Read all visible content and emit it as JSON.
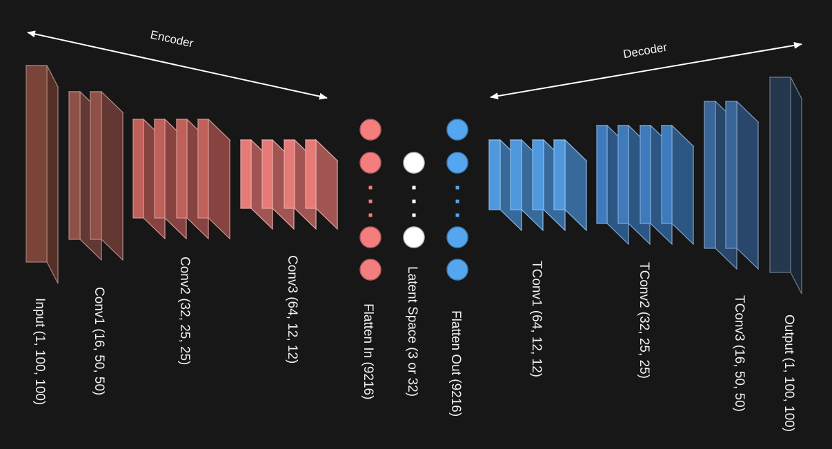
{
  "colors": {
    "background": "#171717",
    "encoder_input": "#7a4438",
    "encoder_conv1": "#8f5047",
    "encoder_conv2": "#c0605a",
    "encoder_conv3": "#e57a77",
    "flatten_in": "#f47d7d",
    "latent": "#ffffff",
    "flatten_out": "#55a6f0",
    "decoder_tconv1": "#4f98de",
    "decoder_tconv2": "#3f7bbc",
    "decoder_tconv3": "#3a6599",
    "decoder_output": "#24384f"
  },
  "arrows": {
    "encoder": "Encoder",
    "decoder": "Decoder"
  },
  "layers": [
    {
      "id": "input",
      "label": "Input (1, 100, 100)"
    },
    {
      "id": "conv1",
      "label": "Conv1 (16, 50, 50)"
    },
    {
      "id": "conv2",
      "label": "Conv2 (32, 25, 25)"
    },
    {
      "id": "conv3",
      "label": "Conv3 (64, 12, 12)"
    },
    {
      "id": "flatten-in",
      "label": "Flatten In (9216)"
    },
    {
      "id": "latent",
      "label": "Latent Space (3 or 32)"
    },
    {
      "id": "flatten-out",
      "label": "Flatten Out (9216)"
    },
    {
      "id": "tconv1",
      "label": "TConv1 (64, 12, 12)"
    },
    {
      "id": "tconv2",
      "label": "TConv2 (32, 25, 25)"
    },
    {
      "id": "tconv3",
      "label": "TConv3 (16, 50, 50)"
    },
    {
      "id": "output",
      "label": "Output (1, 100, 100)"
    }
  ]
}
